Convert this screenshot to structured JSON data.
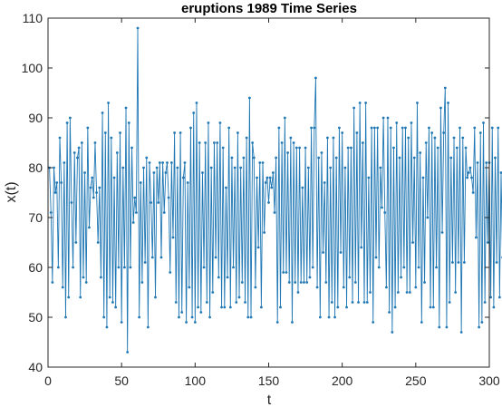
{
  "chart_data": {
    "type": "line",
    "title": "eruptions 1989 Time Series",
    "xlabel": "t",
    "ylabel": "x(t)",
    "xlim": [
      0,
      300
    ],
    "ylim": [
      40,
      110
    ],
    "xticks": [
      "0",
      "50",
      "100",
      "150",
      "200",
      "250",
      "300"
    ],
    "yticks": [
      "40",
      "50",
      "60",
      "70",
      "80",
      "90",
      "100",
      "110"
    ],
    "grid": false,
    "markers": true,
    "line_color": "#1f77b4",
    "series": [
      {
        "values": [
          80,
          71,
          57,
          80,
          75,
          77,
          60,
          86,
          77,
          56,
          81,
          50,
          89,
          54,
          90,
          73,
          60,
          83,
          65,
          82,
          84,
          54,
          85,
          58,
          79,
          57,
          88,
          68,
          76,
          78,
          74,
          85,
          75,
          65,
          76,
          58,
          91,
          50,
          87,
          48,
          93,
          54,
          86,
          53,
          78,
          52,
          83,
          60,
          87,
          49,
          80,
          60,
          92,
          43,
          89,
          60,
          84,
          69,
          74,
          71,
          108,
          50,
          77,
          57,
          80,
          61,
          82,
          48,
          81,
          73,
          62,
          79,
          54,
          80,
          73,
          81,
          62,
          81,
          71,
          79,
          81,
          74,
          59,
          81,
          66,
          87,
          53,
          80,
          50,
          87,
          51,
          78,
          81,
          49,
          77,
          56,
          88,
          50,
          91,
          49,
          93,
          52,
          85,
          51,
          79,
          60,
          85,
          53,
          89,
          50,
          80,
          55,
          85,
          62,
          85,
          58,
          89,
          52,
          84,
          52,
          76,
          58,
          88,
          52,
          82,
          60,
          80,
          53,
          87,
          54,
          80,
          57,
          82,
          53,
          86,
          50,
          94,
          50,
          85,
          82,
          56,
          78,
          64,
          81,
          52,
          81,
          67,
          77,
          78,
          73,
          78,
          76,
          79,
          71,
          82,
          49,
          88,
          52,
          85,
          59,
          90,
          59,
          83,
          57,
          86,
          49,
          85,
          57,
          84,
          55,
          84,
          57,
          76,
          57,
          84,
          57,
          80,
          58,
          88,
          60,
          88,
          98,
          56,
          82,
          50,
          83,
          63,
          77,
          57,
          86,
          50,
          80,
          53,
          86,
          50,
          82,
          52,
          88,
          63,
          87,
          56,
          80,
          52,
          84,
          58,
          84,
          53,
          92,
          57,
          87,
          53,
          93,
          64,
          85,
          53,
          93,
          53,
          78,
          55,
          88,
          49,
          88,
          62,
          88,
          60,
          80,
          72,
          90,
          71,
          56,
          90,
          51,
          88,
          47,
          84,
          52,
          89,
          55,
          82,
          58,
          88,
          60,
          88,
          55,
          86,
          55,
          89,
          65,
          82,
          56,
          93,
          60,
          83,
          49,
          78,
          57,
          85,
          70,
          88,
          52,
          87,
          52,
          86,
          60,
          84,
          48,
          92,
          67,
          87,
          96,
          48,
          93,
          53,
          82,
          61,
          86,
          55,
          84,
          61,
          88,
          47,
          86,
          61,
          84,
          78,
          79,
          80,
          78,
          75,
          88,
          66,
          81,
          48,
          87,
          49,
          89,
          53,
          81,
          65,
          81,
          54,
          88,
          52,
          82,
          61,
          88,
          54,
          79,
          62,
          79
        ]
      }
    ]
  }
}
